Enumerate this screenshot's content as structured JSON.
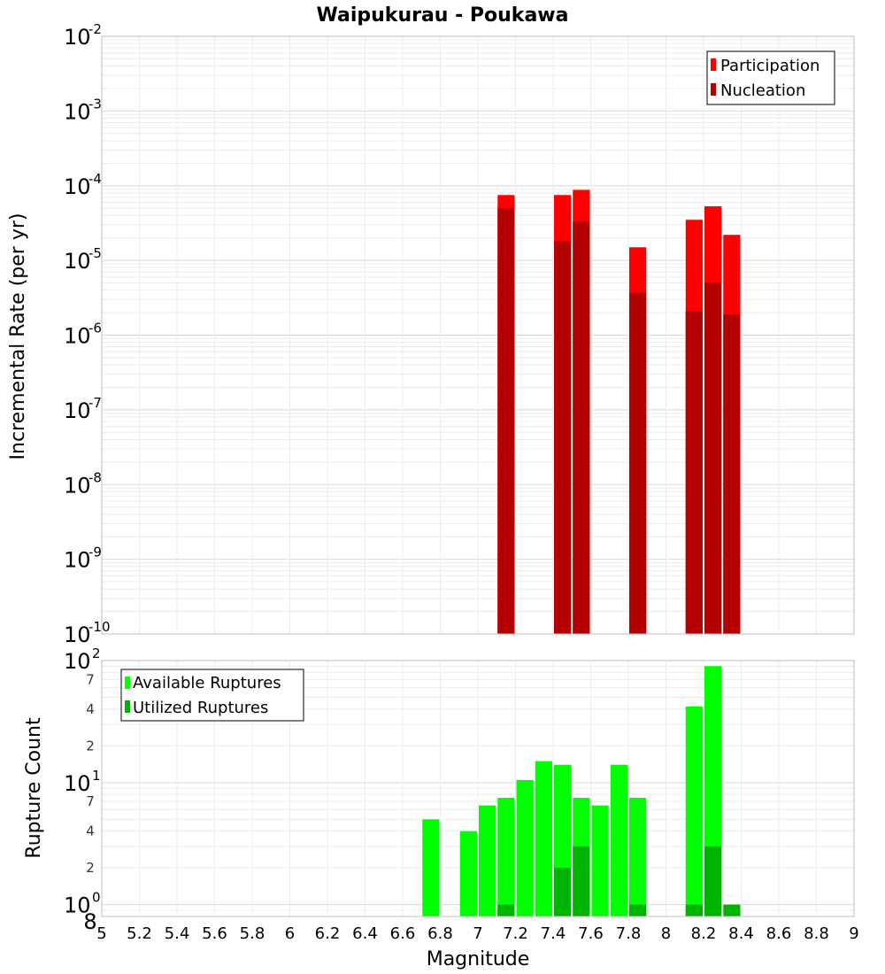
{
  "chart_data": [
    {
      "type": "bar",
      "title": "Waipukurau - Poukawa",
      "ylabel": "Incremental Rate (per yr)",
      "xlabel": "",
      "yscale": "log",
      "ylim": [
        1e-10,
        0.01
      ],
      "xlim": [
        5,
        9
      ],
      "grid": true,
      "legend_position": "top-right",
      "y_tick_exponents": [
        "-10",
        "-9",
        "-8",
        "-7",
        "-6",
        "-5",
        "-4",
        "-3",
        "-2"
      ],
      "y_tick_base": "10",
      "bin_width": 0.1,
      "series": [
        {
          "name": "Participation",
          "color": "#ff0000",
          "x": [
            7.15,
            7.45,
            7.55,
            7.85,
            8.15,
            8.25,
            8.35
          ],
          "values": [
            7.5e-05,
            7.5e-05,
            8.8e-05,
            1.5e-05,
            3.5e-05,
            5.3e-05,
            2.2e-05
          ]
        },
        {
          "name": "Nucleation",
          "color": "#b30000",
          "x": [
            7.15,
            7.45,
            7.55,
            7.85,
            8.15,
            8.25,
            8.35
          ],
          "values": [
            5e-05,
            1.8e-05,
            3.3e-05,
            3.7e-06,
            2.1e-06,
            5.1e-06,
            1.9e-06
          ]
        }
      ]
    },
    {
      "type": "bar",
      "title": "",
      "ylabel": "Rupture Count",
      "xlabel": "Magnitude",
      "yscale": "log",
      "ylim": [
        0.8,
        100
      ],
      "xlim": [
        5,
        9
      ],
      "grid": true,
      "legend_position": "top-left",
      "x_ticks": [
        "5",
        "5.2",
        "5.4",
        "5.6",
        "5.8",
        "6",
        "6.2",
        "6.4",
        "6.6",
        "6.8",
        "7",
        "7.2",
        "7.4",
        "7.6",
        "7.8",
        "8",
        "8.2",
        "8.4",
        "8.6",
        "8.8",
        "9"
      ],
      "y_major_ticks": [
        {
          "value": 1,
          "base": "10",
          "exp": "0"
        },
        {
          "value": 10,
          "base": "10",
          "exp": "1"
        },
        {
          "value": 100,
          "base": "10",
          "exp": "2"
        }
      ],
      "y_minor_ticks": [
        {
          "value": 2,
          "label": "2"
        },
        {
          "value": 4,
          "label": "4"
        },
        {
          "value": 7,
          "label": "7"
        },
        {
          "value": 20,
          "label": "2"
        },
        {
          "value": 40,
          "label": "4"
        },
        {
          "value": 70,
          "label": "7"
        }
      ],
      "y_low_label": {
        "value": 0.8,
        "label": "8"
      },
      "bin_width": 0.1,
      "series": [
        {
          "name": "Available Ruptures",
          "color": "#00ff00",
          "x": [
            6.75,
            6.95,
            7.05,
            7.15,
            7.25,
            7.35,
            7.45,
            7.55,
            7.65,
            7.75,
            7.85,
            8.15,
            8.25
          ],
          "values": [
            5,
            4,
            6.5,
            7.5,
            10.5,
            15,
            14,
            7.5,
            6.5,
            14,
            7.5,
            42,
            90
          ]
        },
        {
          "name": "Utilized Ruptures",
          "color": "#00b300",
          "x": [
            7.15,
            7.45,
            7.55,
            7.85,
            8.15,
            8.25,
            8.35
          ],
          "values": [
            1,
            2,
            3,
            1,
            1,
            3,
            1
          ]
        }
      ]
    }
  ]
}
